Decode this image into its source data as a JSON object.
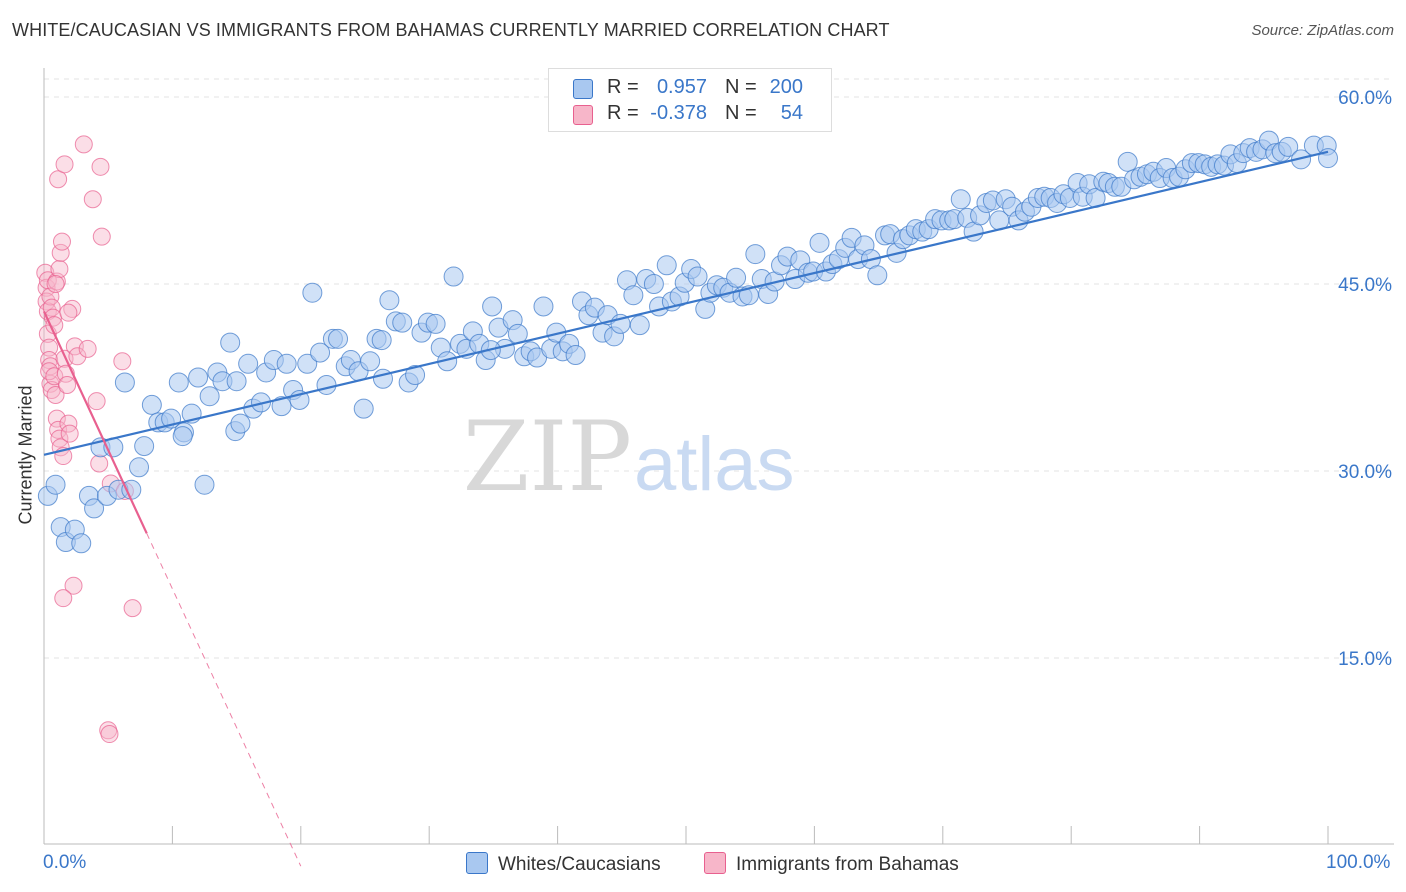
{
  "title": "WHITE/CAUCASIAN VS IMMIGRANTS FROM BAHAMAS CURRENTLY MARRIED CORRELATION CHART",
  "source": "Source: ZipAtlas.com",
  "watermark": {
    "zip": "ZIP",
    "atlas": "atlas"
  },
  "colors": {
    "blue": "#3a77c9",
    "blue_fill": "#a9c8f0",
    "pink": "#e8608f",
    "pink_fill": "#f7b6c9",
    "grid": "#e3e3e3"
  },
  "legend": {
    "series": [
      {
        "name": "Whites/Caucasians",
        "r_label": "R =",
        "r_value": "0.957",
        "n_label": "N =",
        "n_value": "200"
      },
      {
        "name": "Immigrants from Bahamas",
        "r_label": "R =",
        "r_value": "-0.378",
        "n_label": "N =",
        "n_value": "54"
      }
    ]
  },
  "chart_data": {
    "type": "scatter",
    "title": "WHITE/CAUCASIAN VS IMMIGRANTS FROM BAHAMAS CURRENTLY MARRIED CORRELATION CHART",
    "xlabel": "",
    "ylabel": "Currently Married",
    "xlim": [
      0,
      100
    ],
    "ylim": [
      0,
      60
    ],
    "x_tick_labels": [
      "0.0%",
      "100.0%"
    ],
    "y_ticks": [
      15,
      30,
      45,
      60
    ],
    "y_tick_labels": [
      "15.0%",
      "30.0%",
      "45.0%",
      "60.0%"
    ],
    "grid": true,
    "legend_position": "top-center",
    "series": [
      {
        "name": "Whites/Caucasians",
        "r": 0.957,
        "n": 200,
        "trend": {
          "x": [
            0,
            100
          ],
          "y": [
            31.3,
            55.6
          ],
          "style": "solid"
        },
        "points": [
          [
            0.3,
            28.0
          ],
          [
            0.9,
            28.9
          ],
          [
            1.3,
            25.5
          ],
          [
            1.7,
            24.3
          ],
          [
            2.4,
            25.3
          ],
          [
            2.9,
            24.2
          ],
          [
            3.5,
            28.0
          ],
          [
            3.9,
            27.0
          ],
          [
            4.4,
            31.9
          ],
          [
            4.9,
            28.0
          ],
          [
            5.4,
            31.9
          ],
          [
            5.8,
            28.5
          ],
          [
            6.3,
            37.1
          ],
          [
            6.8,
            28.5
          ],
          [
            7.4,
            30.3
          ],
          [
            7.8,
            32.0
          ],
          [
            8.4,
            35.3
          ],
          [
            8.9,
            33.9
          ],
          [
            9.4,
            33.9
          ],
          [
            9.9,
            34.2
          ],
          [
            10.5,
            37.1
          ],
          [
            10.9,
            33.1
          ],
          [
            11.5,
            34.6
          ],
          [
            12.0,
            37.5
          ],
          [
            12.5,
            28.9
          ],
          [
            12.9,
            36.0
          ],
          [
            13.5,
            37.9
          ],
          [
            13.9,
            37.2
          ],
          [
            14.5,
            40.3
          ],
          [
            14.9,
            33.2
          ],
          [
            15.3,
            33.8
          ],
          [
            15.9,
            38.6
          ],
          [
            16.3,
            35.0
          ],
          [
            16.9,
            35.5
          ],
          [
            17.3,
            37.9
          ],
          [
            17.9,
            38.9
          ],
          [
            18.5,
            35.2
          ],
          [
            18.9,
            38.6
          ],
          [
            19.4,
            36.5
          ],
          [
            19.9,
            35.7
          ],
          [
            20.5,
            38.6
          ],
          [
            20.9,
            44.3
          ],
          [
            21.5,
            39.5
          ],
          [
            22.0,
            36.9
          ],
          [
            22.5,
            40.6
          ],
          [
            22.9,
            40.6
          ],
          [
            23.5,
            38.4
          ],
          [
            23.9,
            38.9
          ],
          [
            24.5,
            38.0
          ],
          [
            24.9,
            35.0
          ],
          [
            25.4,
            38.8
          ],
          [
            25.9,
            40.6
          ],
          [
            26.4,
            37.4
          ],
          [
            26.9,
            43.7
          ],
          [
            27.4,
            42.0
          ],
          [
            27.9,
            41.9
          ],
          [
            28.4,
            37.1
          ],
          [
            28.9,
            37.7
          ],
          [
            29.4,
            41.1
          ],
          [
            29.9,
            41.9
          ],
          [
            30.5,
            41.8
          ],
          [
            30.9,
            39.9
          ],
          [
            31.4,
            38.8
          ],
          [
            31.9,
            45.6
          ],
          [
            32.4,
            40.2
          ],
          [
            32.9,
            39.8
          ],
          [
            33.4,
            41.2
          ],
          [
            33.9,
            40.2
          ],
          [
            34.4,
            38.9
          ],
          [
            34.9,
            43.2
          ],
          [
            35.4,
            41.5
          ],
          [
            35.9,
            39.8
          ],
          [
            36.5,
            42.1
          ],
          [
            36.9,
            41.0
          ],
          [
            37.4,
            39.2
          ],
          [
            37.9,
            39.6
          ],
          [
            38.4,
            39.1
          ],
          [
            38.9,
            43.2
          ],
          [
            39.5,
            39.8
          ],
          [
            39.9,
            41.1
          ],
          [
            40.4,
            39.6
          ],
          [
            40.9,
            40.2
          ],
          [
            41.4,
            39.3
          ],
          [
            41.9,
            43.6
          ],
          [
            42.4,
            42.5
          ],
          [
            42.9,
            43.1
          ],
          [
            43.5,
            41.1
          ],
          [
            43.9,
            42.5
          ],
          [
            44.4,
            40.8
          ],
          [
            44.9,
            41.8
          ],
          [
            45.4,
            45.3
          ],
          [
            45.9,
            44.1
          ],
          [
            46.4,
            41.7
          ],
          [
            46.9,
            45.4
          ],
          [
            47.5,
            45.0
          ],
          [
            47.9,
            43.2
          ],
          [
            48.5,
            46.5
          ],
          [
            48.9,
            43.6
          ],
          [
            49.5,
            44.0
          ],
          [
            49.9,
            45.1
          ],
          [
            50.4,
            46.2
          ],
          [
            50.9,
            45.6
          ],
          [
            51.5,
            43.0
          ],
          [
            51.9,
            44.3
          ],
          [
            52.4,
            44.9
          ],
          [
            52.9,
            44.7
          ],
          [
            53.4,
            44.3
          ],
          [
            53.9,
            45.5
          ],
          [
            54.4,
            44.0
          ],
          [
            54.9,
            44.1
          ],
          [
            55.4,
            47.4
          ],
          [
            55.9,
            45.4
          ],
          [
            56.4,
            44.2
          ],
          [
            56.9,
            45.2
          ],
          [
            57.4,
            46.5
          ],
          [
            57.9,
            47.2
          ],
          [
            58.5,
            45.4
          ],
          [
            58.9,
            46.9
          ],
          [
            59.5,
            45.9
          ],
          [
            59.9,
            46.0
          ],
          [
            60.4,
            48.3
          ],
          [
            60.9,
            46.0
          ],
          [
            61.4,
            46.6
          ],
          [
            61.9,
            47.0
          ],
          [
            62.4,
            47.9
          ],
          [
            62.9,
            48.7
          ],
          [
            63.4,
            47.0
          ],
          [
            63.9,
            48.1
          ],
          [
            64.4,
            47.0
          ],
          [
            64.9,
            45.7
          ],
          [
            65.5,
            48.9
          ],
          [
            65.9,
            49.0
          ],
          [
            66.4,
            47.5
          ],
          [
            66.9,
            48.6
          ],
          [
            67.4,
            48.9
          ],
          [
            67.9,
            49.4
          ],
          [
            68.4,
            49.2
          ],
          [
            68.9,
            49.4
          ],
          [
            69.4,
            50.2
          ],
          [
            69.9,
            50.1
          ],
          [
            70.5,
            50.1
          ],
          [
            70.9,
            50.2
          ],
          [
            71.4,
            51.8
          ],
          [
            71.9,
            50.3
          ],
          [
            72.4,
            49.2
          ],
          [
            72.9,
            50.5
          ],
          [
            73.4,
            51.5
          ],
          [
            73.9,
            51.7
          ],
          [
            74.4,
            50.1
          ],
          [
            74.9,
            51.8
          ],
          [
            75.4,
            51.2
          ],
          [
            75.9,
            50.1
          ],
          [
            76.4,
            50.8
          ],
          [
            76.9,
            51.2
          ],
          [
            77.4,
            51.9
          ],
          [
            77.9,
            52.0
          ],
          [
            78.4,
            51.9
          ],
          [
            78.9,
            51.5
          ],
          [
            79.4,
            52.2
          ],
          [
            79.9,
            51.9
          ],
          [
            80.5,
            53.1
          ],
          [
            80.9,
            52.0
          ],
          [
            81.4,
            53.0
          ],
          [
            81.9,
            51.9
          ],
          [
            82.5,
            53.2
          ],
          [
            82.9,
            53.1
          ],
          [
            83.4,
            52.8
          ],
          [
            83.9,
            52.8
          ],
          [
            84.4,
            54.8
          ],
          [
            84.9,
            53.4
          ],
          [
            85.4,
            53.6
          ],
          [
            85.9,
            53.8
          ],
          [
            86.4,
            54.0
          ],
          [
            86.9,
            53.5
          ],
          [
            87.4,
            54.3
          ],
          [
            87.9,
            53.5
          ],
          [
            88.4,
            53.6
          ],
          [
            88.9,
            54.2
          ],
          [
            89.4,
            54.7
          ],
          [
            89.9,
            54.7
          ],
          [
            90.4,
            54.6
          ],
          [
            90.9,
            54.4
          ],
          [
            91.4,
            54.6
          ],
          [
            91.9,
            54.5
          ],
          [
            92.4,
            55.4
          ],
          [
            92.9,
            54.7
          ],
          [
            93.4,
            55.5
          ],
          [
            93.9,
            55.9
          ],
          [
            94.4,
            55.6
          ],
          [
            94.9,
            55.8
          ],
          [
            95.4,
            56.5
          ],
          [
            95.9,
            55.5
          ],
          [
            96.4,
            55.6
          ],
          [
            96.9,
            56.0
          ],
          [
            97.9,
            55.0
          ],
          [
            98.9,
            56.1
          ],
          [
            99.9,
            56.1
          ],
          [
            100.0,
            55.1
          ],
          [
            10.8,
            32.8
          ],
          [
            15.0,
            37.2
          ],
          [
            26.3,
            40.5
          ],
          [
            34.8,
            39.7
          ]
        ]
      },
      {
        "name": "Immigrants from Bahamas",
        "r": -0.378,
        "n": 54,
        "trend": {
          "x": [
            0,
            8
          ],
          "y": [
            42.8,
            25.0
          ],
          "style": "solid",
          "extended": {
            "x": [
              8,
              20
            ],
            "y": [
              25.0,
              -1.7
            ],
            "style": "dashed"
          }
        },
        "points": [
          [
            0.1,
            45.9
          ],
          [
            0.2,
            44.7
          ],
          [
            0.2,
            43.6
          ],
          [
            0.3,
            42.8
          ],
          [
            0.3,
            41.0
          ],
          [
            0.4,
            39.9
          ],
          [
            0.4,
            38.9
          ],
          [
            0.5,
            38.4
          ],
          [
            0.5,
            37.0
          ],
          [
            0.6,
            36.5
          ],
          [
            0.3,
            45.3
          ],
          [
            0.5,
            44.0
          ],
          [
            0.6,
            43.1
          ],
          [
            0.7,
            42.3
          ],
          [
            0.8,
            41.7
          ],
          [
            0.4,
            38.0
          ],
          [
            0.8,
            37.6
          ],
          [
            0.9,
            36.1
          ],
          [
            1.0,
            34.2
          ],
          [
            1.1,
            33.3
          ],
          [
            1.2,
            32.6
          ],
          [
            1.3,
            31.9
          ],
          [
            1.5,
            31.2
          ],
          [
            1.0,
            45.2
          ],
          [
            1.2,
            46.2
          ],
          [
            1.3,
            47.5
          ],
          [
            1.4,
            48.4
          ],
          [
            1.6,
            39.0
          ],
          [
            1.7,
            37.8
          ],
          [
            1.8,
            36.9
          ],
          [
            1.9,
            33.8
          ],
          [
            2.0,
            33.0
          ],
          [
            2.2,
            43.0
          ],
          [
            2.4,
            40.0
          ],
          [
            2.6,
            39.2
          ],
          [
            1.1,
            53.4
          ],
          [
            1.6,
            54.6
          ],
          [
            3.1,
            56.2
          ],
          [
            3.8,
            51.8
          ],
          [
            4.4,
            54.4
          ],
          [
            4.5,
            48.8
          ],
          [
            3.4,
            39.8
          ],
          [
            4.1,
            35.6
          ],
          [
            4.3,
            30.6
          ],
          [
            5.2,
            29.0
          ],
          [
            6.1,
            38.8
          ],
          [
            6.3,
            28.4
          ],
          [
            2.3,
            20.8
          ],
          [
            1.5,
            19.8
          ],
          [
            6.9,
            19.0
          ],
          [
            5.0,
            9.2
          ],
          [
            5.1,
            8.9
          ],
          [
            1.9,
            42.7
          ],
          [
            0.9,
            45.0
          ]
        ]
      }
    ]
  }
}
